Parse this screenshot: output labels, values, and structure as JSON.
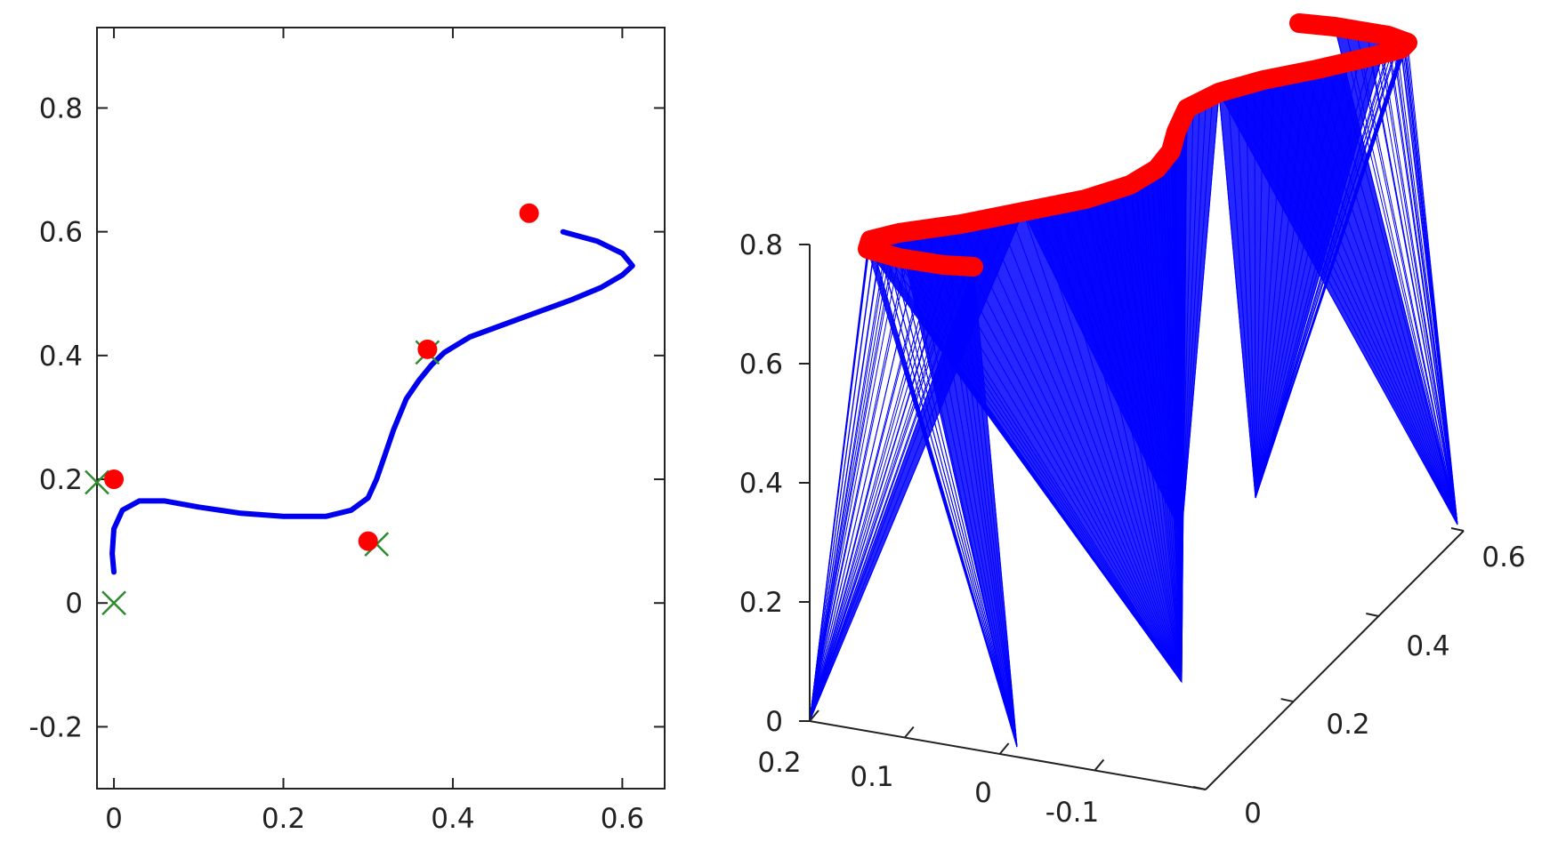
{
  "chart_data": [
    {
      "type": "line",
      "view": "2d",
      "xlim": [
        -0.02,
        0.65
      ],
      "ylim": [
        -0.3,
        0.93
      ],
      "xticks": [
        0,
        0.2,
        0.4,
        0.6
      ],
      "yticks": [
        -0.2,
        0,
        0.2,
        0.4,
        0.6,
        0.8
      ],
      "xtick_labels": [
        "0",
        "0.2",
        "0.4",
        "0.6"
      ],
      "ytick_labels": [
        "-0.2",
        "0",
        "0.2",
        "0.4",
        "0.6",
        "0.8"
      ],
      "grid": false,
      "series": [
        {
          "kind": "trajectory",
          "color": "#0000ee",
          "x": [
            0.0,
            -0.002,
            0.0,
            0.01,
            0.03,
            0.06,
            0.1,
            0.15,
            0.2,
            0.25,
            0.28,
            0.3,
            0.31,
            0.32,
            0.33,
            0.345,
            0.36,
            0.375,
            0.39,
            0.42,
            0.46,
            0.5,
            0.54,
            0.575,
            0.6,
            0.612,
            0.6,
            0.57,
            0.53
          ],
          "y": [
            0.05,
            0.08,
            0.12,
            0.15,
            0.165,
            0.165,
            0.155,
            0.145,
            0.14,
            0.14,
            0.15,
            0.17,
            0.2,
            0.24,
            0.28,
            0.33,
            0.36,
            0.385,
            0.405,
            0.43,
            0.45,
            0.47,
            0.49,
            0.51,
            0.53,
            0.545,
            0.565,
            0.585,
            0.6
          ]
        }
      ],
      "targets": {
        "color": "#ff0000",
        "points": [
          [
            0.0,
            0.2
          ],
          [
            0.3,
            0.1
          ],
          [
            0.37,
            0.41
          ],
          [
            0.49,
            0.63
          ]
        ]
      },
      "crosses": {
        "color": "#2e8b2e",
        "points": [
          [
            0.0,
            0.0
          ],
          [
            -0.02,
            0.195
          ],
          [
            0.31,
            0.095
          ],
          [
            0.37,
            0.405
          ]
        ]
      }
    },
    {
      "type": "line",
      "view": "3d",
      "zlim": [
        0,
        0.8
      ],
      "zticks": [
        0,
        0.2,
        0.4,
        0.6,
        0.8
      ],
      "ztick_labels": [
        "0",
        "0.2",
        "0.4",
        "0.6",
        "0.8"
      ],
      "front_axis_ticks": [
        0.2,
        0.1,
        0,
        -0.1
      ],
      "front_axis_labels": [
        "0.2",
        "0.1",
        "0",
        "-0.1"
      ],
      "side_axis_ticks": [
        0,
        0.2,
        0.4,
        0.6
      ],
      "side_axis_labels": [
        "0",
        "0.2",
        "0.4",
        "0.6"
      ],
      "grid": false,
      "curve_color": "#ff0000",
      "fill_color": "#0000ff"
    }
  ]
}
